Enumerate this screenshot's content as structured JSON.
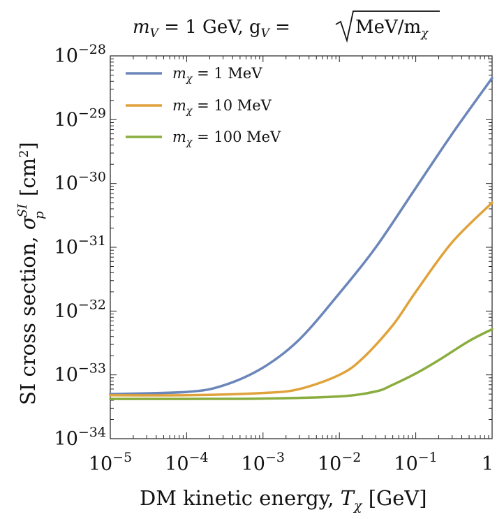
{
  "chart_data": {
    "type": "line",
    "title": {
      "part1": "m",
      "part1_sub": "V",
      "part2": " = 1 GeV,  g",
      "part2_sub": "V",
      "part3": " = ",
      "sqrt_content": "MeV/m",
      "sqrt_sub": "χ"
    },
    "xlabel": {
      "main": "DM kinetic energy, ",
      "var": "T",
      "sub": "χ",
      "unit": " [GeV]"
    },
    "ylabel": {
      "main": "SI cross section, ",
      "var": "σ",
      "sub": "p",
      "sup": "SI",
      "unit": " [cm",
      "unit_sup": "2",
      "unit_end": "]"
    },
    "x_scale": "log",
    "y_scale": "log",
    "xlim": [
      1e-05,
      1
    ],
    "ylim": [
      1e-34,
      1e-28
    ],
    "x_ticks": [
      {
        "value": 1e-05,
        "base": "10",
        "exp": "−5"
      },
      {
        "value": 0.0001,
        "base": "10",
        "exp": "−4"
      },
      {
        "value": 0.001,
        "base": "10",
        "exp": "−3"
      },
      {
        "value": 0.01,
        "base": "10",
        "exp": "−2"
      },
      {
        "value": 0.1,
        "base": "10",
        "exp": "−1"
      },
      {
        "value": 1,
        "base": "1",
        "exp": ""
      }
    ],
    "y_ticks": [
      {
        "value": 1e-34,
        "base": "10",
        "exp": "−34"
      },
      {
        "value": 1e-33,
        "base": "10",
        "exp": "−33"
      },
      {
        "value": 1e-32,
        "base": "10",
        "exp": "−32"
      },
      {
        "value": 1e-31,
        "base": "10",
        "exp": "−31"
      },
      {
        "value": 1e-30,
        "base": "10",
        "exp": "−30"
      },
      {
        "value": 1e-29,
        "base": "10",
        "exp": "−29"
      },
      {
        "value": 1e-28,
        "base": "10",
        "exp": "−28"
      }
    ],
    "legend_position": "top-left",
    "series": [
      {
        "name": "m_χ = 1 MeV",
        "label_var": "m",
        "label_sub": "χ",
        "label_text": " = 1 MeV",
        "color": "#6b86b9",
        "x": [
          1e-05,
          0.0001,
          0.0003,
          0.001,
          0.003,
          0.01,
          0.03,
          0.1,
          0.3,
          1
        ],
        "y": [
          5e-34,
          5.4e-34,
          6.8e-34,
          1.3e-33,
          3.6e-33,
          1.9e-32,
          1e-31,
          8.5e-31,
          6e-30,
          4.5e-29
        ]
      },
      {
        "name": "m_χ = 10 MeV",
        "label_var": "m",
        "label_sub": "χ",
        "label_text": " = 10 MeV",
        "color": "#e0a23b",
        "x": [
          1e-05,
          0.0001,
          0.001,
          0.003,
          0.01,
          0.02,
          0.05,
          0.1,
          0.3,
          1
        ],
        "y": [
          4.8e-34,
          4.8e-34,
          5.2e-34,
          6e-34,
          1e-33,
          1.8e-33,
          6e-33,
          2e-32,
          1.2e-31,
          5e-31
        ]
      },
      {
        "name": "m_χ = 100 MeV",
        "label_var": "m",
        "label_sub": "χ",
        "label_text": " = 100 MeV",
        "color": "#8aad3f",
        "x": [
          1e-05,
          0.0001,
          0.001,
          0.01,
          0.03,
          0.05,
          0.1,
          0.2,
          0.5,
          1
        ],
        "y": [
          4.2e-34,
          4.2e-34,
          4.25e-34,
          4.6e-34,
          5.5e-34,
          7e-34,
          1.05e-33,
          1.7e-33,
          3.4e-33,
          5.2e-33
        ]
      }
    ]
  }
}
